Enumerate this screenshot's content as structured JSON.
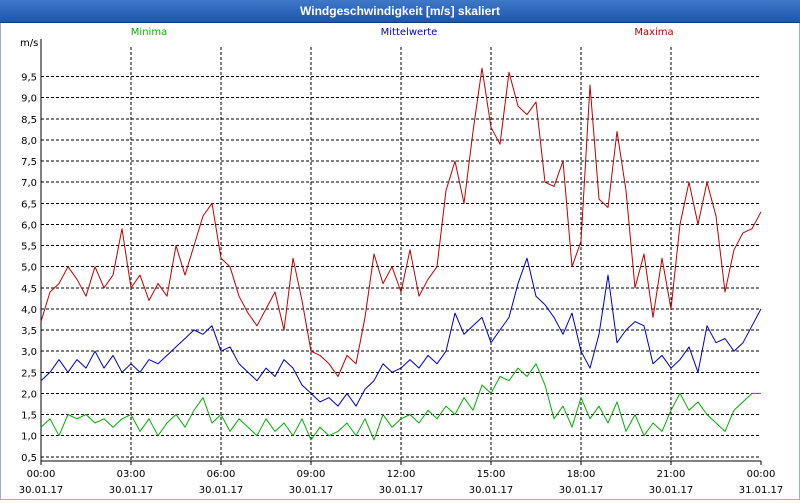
{
  "window": {
    "title": "Windgeschwindigkeit [m/s] skaliert"
  },
  "chart_data": {
    "type": "line",
    "title": "Windgeschwindigkeit [m/s] skaliert",
    "ylabel": "m/s",
    "ylim": [
      0.4,
      10.2
    ],
    "xlim": [
      0,
      24
    ],
    "yticks": [
      0.5,
      1.0,
      1.5,
      2.0,
      2.5,
      3.0,
      3.5,
      4.0,
      4.5,
      5.0,
      5.5,
      6.0,
      6.5,
      7.0,
      7.5,
      8.0,
      8.5,
      9.0,
      9.5
    ],
    "ytick_labels": [
      "0,5",
      "1,0",
      "1,5",
      "2,0",
      "2,5",
      "3,0",
      "3,5",
      "4,0",
      "4,5",
      "5,0",
      "5,5",
      "6,0",
      "6,5",
      "7,0",
      "7,5",
      "8,0",
      "8,5",
      "9,0",
      "9,5"
    ],
    "xticks": [
      {
        "t": 0,
        "time": "00:00",
        "date": "30.01.17"
      },
      {
        "t": 3,
        "time": "03:00",
        "date": "30.01.17"
      },
      {
        "t": 6,
        "time": "06:00",
        "date": "30.01.17"
      },
      {
        "t": 9,
        "time": "09:00",
        "date": "30.01.17"
      },
      {
        "t": 12,
        "time": "12:00",
        "date": "30.01.17"
      },
      {
        "t": 15,
        "time": "15:00",
        "date": "30.01.17"
      },
      {
        "t": 18,
        "time": "18:00",
        "date": "30.01.17"
      },
      {
        "t": 21,
        "time": "21:00",
        "date": "30.01.17"
      },
      {
        "t": 24,
        "time": "00:00",
        "date": "31.01.17"
      }
    ],
    "grid": true,
    "series": [
      {
        "name": "Minima",
        "color": "#00b000",
        "legend": "left",
        "x": [
          0,
          0.3,
          0.6,
          0.9,
          1.2,
          1.5,
          1.8,
          2.1,
          2.4,
          2.7,
          3.0,
          3.3,
          3.6,
          3.9,
          4.2,
          4.5,
          4.8,
          5.1,
          5.4,
          5.7,
          6.0,
          6.3,
          6.6,
          6.9,
          7.2,
          7.5,
          7.8,
          8.1,
          8.4,
          8.7,
          9.0,
          9.3,
          9.6,
          9.9,
          10.2,
          10.5,
          10.8,
          11.1,
          11.4,
          11.7,
          12.0,
          12.3,
          12.6,
          12.9,
          13.2,
          13.5,
          13.8,
          14.1,
          14.4,
          14.7,
          15.0,
          15.3,
          15.6,
          15.9,
          16.2,
          16.5,
          16.8,
          17.1,
          17.4,
          17.7,
          18.0,
          18.3,
          18.6,
          18.9,
          19.2,
          19.5,
          19.8,
          20.1,
          20.4,
          20.7,
          21.0,
          21.3,
          21.6,
          21.9,
          22.2,
          22.5,
          22.8,
          23.1,
          23.4,
          23.7,
          24.0
        ],
        "values": [
          1.2,
          1.4,
          1.0,
          1.5,
          1.4,
          1.5,
          1.3,
          1.4,
          1.2,
          1.4,
          1.5,
          1.1,
          1.4,
          1.0,
          1.3,
          1.5,
          1.2,
          1.6,
          1.9,
          1.3,
          1.5,
          1.1,
          1.4,
          1.2,
          1.0,
          1.4,
          1.1,
          1.3,
          1.0,
          1.4,
          0.9,
          1.2,
          1.0,
          1.1,
          1.3,
          1.0,
          1.4,
          0.9,
          1.5,
          1.2,
          1.4,
          1.5,
          1.3,
          1.6,
          1.4,
          1.7,
          1.5,
          1.9,
          1.6,
          2.2,
          2.0,
          2.4,
          2.3,
          2.6,
          2.4,
          2.7,
          2.2,
          1.4,
          1.7,
          1.2,
          1.9,
          1.4,
          1.7,
          1.3,
          1.8,
          1.1,
          1.5,
          1.0,
          1.3,
          1.1,
          1.6,
          2.0,
          1.6,
          1.8,
          1.5,
          1.3,
          1.1,
          1.6,
          1.8,
          2.0,
          2.0
        ]
      },
      {
        "name": "Mittelwerte",
        "color": "#0000c0",
        "legend": "center",
        "x": [
          0,
          0.3,
          0.6,
          0.9,
          1.2,
          1.5,
          1.8,
          2.1,
          2.4,
          2.7,
          3.0,
          3.3,
          3.6,
          3.9,
          4.2,
          4.5,
          4.8,
          5.1,
          5.4,
          5.7,
          6.0,
          6.3,
          6.6,
          6.9,
          7.2,
          7.5,
          7.8,
          8.1,
          8.4,
          8.7,
          9.0,
          9.3,
          9.6,
          9.9,
          10.2,
          10.5,
          10.8,
          11.1,
          11.4,
          11.7,
          12.0,
          12.3,
          12.6,
          12.9,
          13.2,
          13.5,
          13.8,
          14.1,
          14.4,
          14.7,
          15.0,
          15.3,
          15.6,
          15.9,
          16.2,
          16.5,
          16.8,
          17.1,
          17.4,
          17.7,
          18.0,
          18.3,
          18.6,
          18.9,
          19.2,
          19.5,
          19.8,
          20.1,
          20.4,
          20.7,
          21.0,
          21.3,
          21.6,
          21.9,
          22.2,
          22.5,
          22.8,
          23.1,
          23.4,
          23.7,
          24.0
        ],
        "values": [
          2.3,
          2.5,
          2.8,
          2.5,
          2.8,
          2.6,
          3.0,
          2.6,
          2.9,
          2.5,
          2.7,
          2.5,
          2.8,
          2.7,
          2.9,
          3.1,
          3.3,
          3.5,
          3.4,
          3.6,
          3.0,
          3.1,
          2.7,
          2.5,
          2.3,
          2.6,
          2.4,
          2.8,
          2.6,
          2.2,
          2.0,
          1.8,
          1.9,
          1.7,
          2.0,
          1.7,
          2.1,
          2.3,
          2.7,
          2.5,
          2.6,
          2.8,
          2.6,
          2.9,
          2.7,
          3.0,
          3.9,
          3.4,
          3.6,
          3.8,
          3.2,
          3.5,
          3.8,
          4.6,
          5.2,
          4.3,
          4.1,
          3.8,
          3.4,
          3.9,
          3.0,
          2.6,
          3.4,
          4.8,
          3.2,
          3.5,
          3.7,
          3.6,
          2.7,
          2.9,
          2.6,
          2.8,
          3.1,
          2.5,
          3.6,
          3.2,
          3.3,
          3.0,
          3.2,
          3.6,
          4.0
        ]
      },
      {
        "name": "Maxima",
        "color": "#c00000",
        "legend": "right",
        "x": [
          0,
          0.3,
          0.6,
          0.9,
          1.2,
          1.5,
          1.8,
          2.1,
          2.4,
          2.7,
          3.0,
          3.3,
          3.6,
          3.9,
          4.2,
          4.5,
          4.8,
          5.1,
          5.4,
          5.7,
          6.0,
          6.3,
          6.6,
          6.9,
          7.2,
          7.5,
          7.8,
          8.1,
          8.4,
          8.7,
          9.0,
          9.3,
          9.6,
          9.9,
          10.2,
          10.5,
          10.8,
          11.1,
          11.4,
          11.7,
          12.0,
          12.3,
          12.6,
          12.9,
          13.2,
          13.5,
          13.8,
          14.1,
          14.4,
          14.7,
          15.0,
          15.3,
          15.6,
          15.9,
          16.2,
          16.5,
          16.8,
          17.1,
          17.4,
          17.7,
          18.0,
          18.3,
          18.6,
          18.9,
          19.2,
          19.5,
          19.8,
          20.1,
          20.4,
          20.7,
          21.0,
          21.3,
          21.6,
          21.9,
          22.2,
          22.5,
          22.8,
          23.1,
          23.4,
          23.7,
          24.0
        ],
        "values": [
          3.7,
          4.4,
          4.6,
          5.0,
          4.7,
          4.3,
          5.0,
          4.5,
          4.8,
          5.9,
          4.5,
          4.8,
          4.2,
          4.6,
          4.3,
          5.5,
          4.8,
          5.5,
          6.2,
          6.5,
          5.2,
          5.0,
          4.3,
          3.9,
          3.6,
          4.0,
          4.4,
          3.5,
          5.2,
          4.2,
          3.0,
          2.9,
          2.7,
          2.4,
          2.9,
          2.7,
          3.8,
          5.3,
          4.6,
          5.0,
          4.4,
          5.4,
          4.3,
          4.7,
          5.0,
          6.8,
          7.5,
          6.5,
          8.2,
          9.7,
          8.3,
          7.9,
          9.6,
          8.8,
          8.6,
          8.9,
          7.0,
          6.9,
          7.5,
          5.0,
          5.6,
          9.3,
          6.6,
          6.4,
          8.2,
          6.8,
          4.5,
          5.3,
          3.8,
          5.2,
          4.0,
          6.0,
          7.0,
          6.0,
          7.0,
          6.2,
          4.4,
          5.4,
          5.8,
          5.9,
          6.3
        ]
      }
    ]
  }
}
